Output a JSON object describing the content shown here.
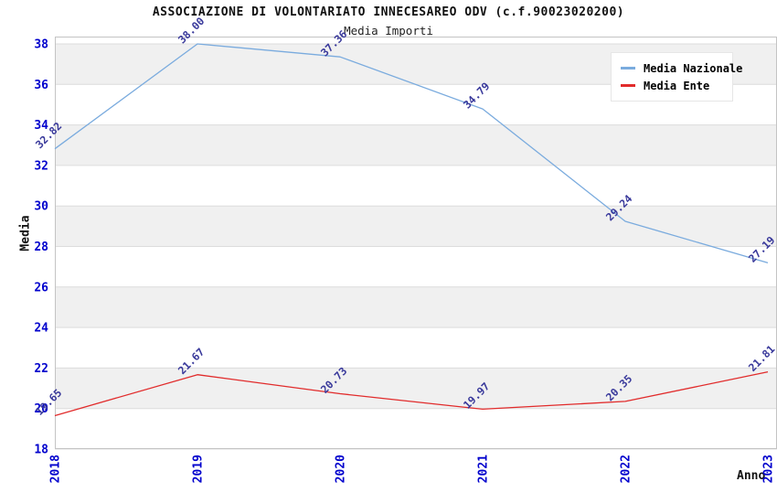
{
  "title": "ASSOCIAZIONE DI VOLONTARIATO INNECESAREO ODV (c.f.90023020200)",
  "subtitle": "Media Importi",
  "chart_data": {
    "type": "line",
    "x": [
      "2018",
      "2019",
      "2020",
      "2021",
      "2022",
      "2023"
    ],
    "series": [
      {
        "name": "Media Nazionale",
        "color": "#7aabde",
        "values": [
          32.82,
          38.0,
          37.36,
          34.79,
          29.24,
          27.19
        ],
        "point_labels": [
          "32.82",
          "38.00",
          "37.36",
          "34.79",
          "29.24",
          "27.19"
        ]
      },
      {
        "name": "Media Ente",
        "color": "#e12b2b",
        "values": [
          19.65,
          21.67,
          20.73,
          19.97,
          20.35,
          21.81
        ],
        "point_labels": [
          "19.65",
          "21.67",
          "20.73",
          "19.97",
          "20.35",
          "21.81"
        ]
      }
    ],
    "xlabel": "Anno",
    "ylabel": "Media",
    "ylim": [
      18,
      38
    ],
    "yticks": [
      18,
      20,
      22,
      24,
      26,
      28,
      30,
      32,
      34,
      36,
      38
    ],
    "grid": true,
    "legend_position": "top-right",
    "styles": {
      "tick_label_color": "#0000cd",
      "point_label_color": "#39399b",
      "band_color": "#f0f0f0",
      "gridline_color": "#dcdcdc",
      "frame_color": "#c4c4c4",
      "background": "#ffffff"
    }
  }
}
